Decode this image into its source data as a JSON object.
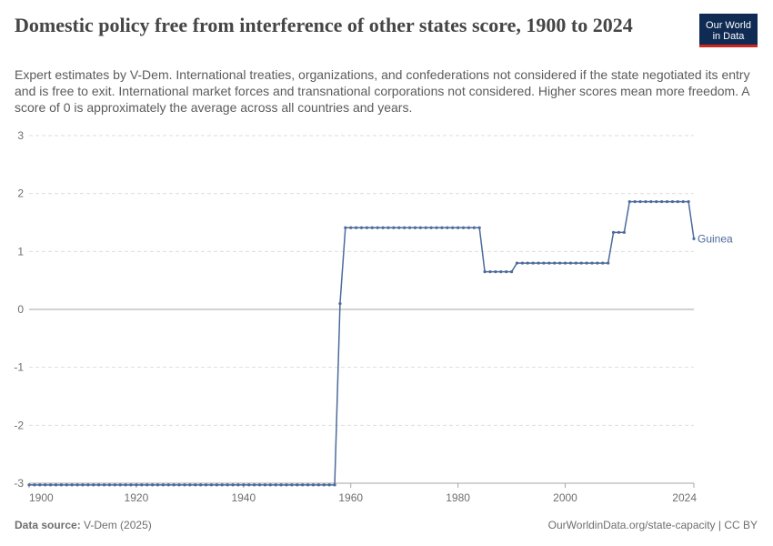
{
  "header": {
    "title": "Domestic policy free from interference of other states score, 1900 to 2024",
    "subtitle": "Expert estimates by V-Dem. International treaties, organizations, and confederations not considered if the state negotiated its entry and is free to exit. International market forces and transnational corporations not considered. Higher scores mean more freedom. A score of 0 is approximately the average across all countries and years.",
    "logo_line1": "Our World",
    "logo_line2": "in Data"
  },
  "footer": {
    "source_label": "Data source:",
    "source_value": "V-Dem (2025)",
    "url": "OurWorldinData.org/state-capacity | CC BY"
  },
  "colors": {
    "series": "#4c6a9c",
    "grid": "#dddddd",
    "zero_line": "#a5a5a5",
    "text": "#6e6e6e"
  },
  "chart_data": {
    "type": "line",
    "title": "Domestic policy free from interference of other states score, 1900 to 2024",
    "xlabel": "",
    "ylabel": "",
    "xlim": [
      1900,
      2024
    ],
    "ylim": [
      -3,
      3
    ],
    "x_ticks": [
      1900,
      1920,
      1940,
      1960,
      1980,
      2000,
      2024
    ],
    "y_ticks": [
      -3,
      -2,
      -1,
      0,
      1,
      2,
      3
    ],
    "grid": true,
    "legend": "end-of-line label",
    "series": [
      {
        "name": "Guinea",
        "color": "#4c6a9c",
        "segments": [
          {
            "from": 1900,
            "to": 1957,
            "value": -3.03
          },
          {
            "from": 1958,
            "to": 1958,
            "value": 0.1
          },
          {
            "from": 1959,
            "to": 1984,
            "value": 1.41
          },
          {
            "from": 1985,
            "to": 1990,
            "value": 0.65
          },
          {
            "from": 1991,
            "to": 2008,
            "value": 0.8
          },
          {
            "from": 2009,
            "to": 2011,
            "value": 1.33
          },
          {
            "from": 2012,
            "to": 2023,
            "value": 1.86
          },
          {
            "from": 2024,
            "to": 2024,
            "value": 1.22
          }
        ]
      }
    ]
  }
}
